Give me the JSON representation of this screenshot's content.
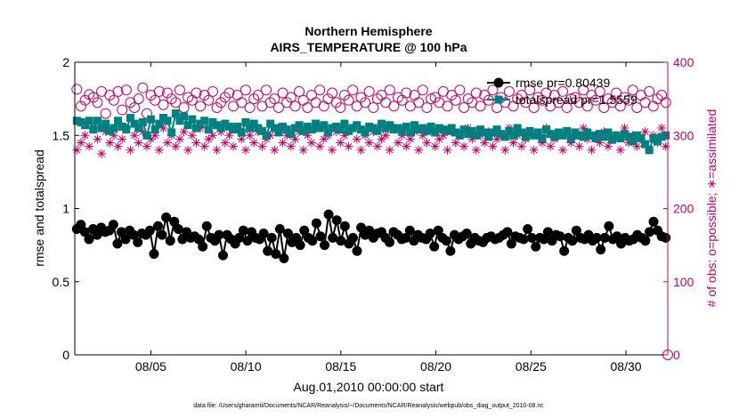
{
  "chart_data": {
    "type": "line",
    "title": "Northern Hemisphere",
    "subtitle": "AIRS_TEMPERATURE @ 100 hPa",
    "xlabel": "Aug.01,2010 00:00:00 start",
    "ylabel_left": "rmse and totalspread",
    "ylabel_right": "# of obs: o=possible; ∗=assimilated",
    "footnote": "data file: /Users/gharamti/Documents/NCAR/Reanalysis/~/Documents/NCAR/Reanalysis/webpub/obs_diag_output_2010-08.nc",
    "x_range_days": [
      1.0,
      32.2
    ],
    "x_ticks": [
      {
        "day": 5,
        "label": "08/05"
      },
      {
        "day": 10,
        "label": "08/10"
      },
      {
        "day": 15,
        "label": "08/15"
      },
      {
        "day": 20,
        "label": "08/20"
      },
      {
        "day": 25,
        "label": "08/25"
      },
      {
        "day": 30,
        "label": "08/30"
      }
    ],
    "ylim_left": [
      0,
      2
    ],
    "yticks_left": [
      "0",
      "0.5",
      "1",
      "1.5",
      "2"
    ],
    "ylim_right": [
      0,
      400
    ],
    "yticks_right": [
      "0",
      "100",
      "200",
      "300",
      "400"
    ],
    "colors": {
      "rmse": "#000000",
      "totalspread": "#008080",
      "obs": "#cc0066",
      "axis": "#000000"
    },
    "legend": {
      "position": "top-right",
      "entries": [
        "rmse pr=0.80439",
        "totalspread pr=1.5559"
      ]
    },
    "series": [
      {
        "name": "rmse pr=0.80439",
        "axis": "left",
        "marker": "filled-circle",
        "values": [
          0.86,
          0.89,
          0.84,
          0.79,
          0.86,
          0.82,
          0.87,
          0.84,
          0.85,
          0.89,
          0.76,
          0.84,
          0.79,
          0.85,
          0.82,
          0.77,
          0.83,
          0.82,
          0.85,
          0.69,
          0.88,
          0.82,
          0.94,
          0.78,
          0.91,
          0.86,
          0.79,
          0.84,
          0.8,
          0.81,
          0.79,
          0.74,
          0.88,
          0.8,
          0.78,
          0.82,
          0.68,
          0.82,
          0.79,
          0.76,
          0.8,
          0.85,
          0.78,
          0.84,
          0.8,
          0.79,
          0.83,
          0.71,
          0.8,
          0.69,
          0.86,
          0.66,
          0.83,
          0.77,
          0.8,
          0.75,
          0.85,
          0.8,
          0.78,
          0.9,
          0.81,
          0.75,
          0.96,
          0.8,
          0.92,
          0.78,
          0.88,
          0.76,
          0.8,
          0.71,
          0.87,
          0.82,
          0.85,
          0.8,
          0.83,
          0.84,
          0.8,
          0.77,
          0.84,
          0.82,
          0.79,
          0.8,
          0.85,
          0.78,
          0.82,
          0.8,
          0.79,
          0.83,
          0.74,
          0.85,
          0.8,
          0.78,
          0.71,
          0.82,
          0.79,
          0.81,
          0.83,
          0.76,
          0.8,
          0.78,
          0.77,
          0.8,
          0.81,
          0.79,
          0.8,
          0.82,
          0.84,
          0.76,
          0.81,
          0.8,
          0.79,
          0.86,
          0.8,
          0.74,
          0.8,
          0.79,
          0.84,
          0.78,
          0.82,
          0.81,
          0.71,
          0.8,
          0.78,
          0.85,
          0.8,
          0.79,
          0.82,
          0.78,
          0.8,
          0.72,
          0.8,
          0.88,
          0.79,
          0.81,
          0.76,
          0.8,
          0.78,
          0.79,
          0.82,
          0.8,
          0.78,
          0.84,
          0.91,
          0.85,
          0.81,
          0.8
        ],
        "stats": {
          "pr": 0.80439
        }
      },
      {
        "name": "totalspread pr=1.5559",
        "axis": "left",
        "marker": "filled-square",
        "values": [
          1.6,
          1.59,
          1.57,
          1.6,
          1.54,
          1.6,
          1.55,
          1.58,
          1.53,
          1.55,
          1.6,
          1.56,
          1.54,
          1.62,
          1.58,
          1.55,
          1.59,
          1.5,
          1.61,
          1.54,
          1.58,
          1.62,
          1.6,
          1.52,
          1.65,
          1.6,
          1.63,
          1.57,
          1.61,
          1.55,
          1.58,
          1.6,
          1.54,
          1.59,
          1.57,
          1.55,
          1.58,
          1.56,
          1.54,
          1.56,
          1.52,
          1.59,
          1.55,
          1.58,
          1.55,
          1.53,
          1.5,
          1.58,
          1.55,
          1.52,
          1.56,
          1.54,
          1.51,
          1.55,
          1.57,
          1.53,
          1.56,
          1.54,
          1.58,
          1.55,
          1.57,
          1.52,
          1.55,
          1.56,
          1.54,
          1.58,
          1.53,
          1.55,
          1.57,
          1.54,
          1.52,
          1.56,
          1.55,
          1.53,
          1.58,
          1.55,
          1.57,
          1.54,
          1.55,
          1.53,
          1.56,
          1.52,
          1.57,
          1.54,
          1.55,
          1.53,
          1.56,
          1.52,
          1.55,
          1.54,
          1.53,
          1.55,
          1.52,
          1.5,
          1.54,
          1.51,
          1.53,
          1.5,
          1.54,
          1.52,
          1.49,
          1.52,
          1.54,
          1.51,
          1.49,
          1.53,
          1.5,
          1.55,
          1.52,
          1.49,
          1.53,
          1.5,
          1.52,
          1.48,
          1.54,
          1.51,
          1.49,
          1.52,
          1.5,
          1.53,
          1.48,
          1.52,
          1.5,
          1.49,
          1.52,
          1.5,
          1.48,
          1.51,
          1.49,
          1.52,
          1.47,
          1.5,
          1.48,
          1.51,
          1.49,
          1.46,
          1.5,
          1.48,
          1.44,
          1.4,
          1.48,
          1.46,
          1.49,
          1.5
        ],
        "stats": {
          "pr": 1.5559
        }
      },
      {
        "name": "possible",
        "axis": "right",
        "marker": "open-circle",
        "values": [
          363,
          340,
          348,
          356,
          352,
          345,
          360,
          330,
          355,
          348,
          360,
          335,
          362,
          345,
          338,
          350,
          365,
          330,
          355,
          348,
          360,
          342,
          358,
          350,
          345,
          362,
          338,
          352,
          348,
          358,
          340,
          355,
          348,
          360,
          338,
          345,
          352,
          358,
          340,
          355,
          345,
          362,
          338,
          350,
          355,
          340,
          362,
          345,
          350,
          338,
          358,
          345,
          352,
          340,
          360,
          348,
          338,
          355,
          345,
          362,
          340,
          350,
          358,
          345,
          338,
          355,
          348,
          362,
          340,
          352,
          345,
          360,
          338,
          350,
          355,
          345,
          362,
          340,
          352,
          348,
          358,
          340,
          355,
          345,
          362,
          338,
          350,
          352,
          345,
          360,
          340,
          355,
          348,
          362,
          338,
          350,
          345,
          358,
          340,
          355,
          348,
          362,
          338,
          352,
          345,
          360,
          340,
          350,
          355,
          345,
          362,
          338,
          352,
          348,
          358,
          340,
          355,
          345,
          360,
          338,
          350,
          352,
          345,
          362,
          340,
          355,
          348,
          360,
          338,
          350,
          345,
          358,
          340,
          352,
          348,
          362,
          338,
          355,
          345,
          360,
          340,
          350,
          355,
          345
        ],
        "stats": {}
      },
      {
        "name": "assimilated",
        "axis": "right",
        "marker": "asterisk",
        "values": [
          280,
          290,
          300,
          285,
          310,
          295,
          275,
          305,
          290,
          300,
          285,
          295,
          310,
          280,
          300,
          290,
          305,
          285,
          295,
          300,
          280,
          310,
          290,
          300,
          285,
          295,
          305,
          280,
          300,
          290,
          310,
          285,
          295,
          300,
          280,
          305,
          290,
          300,
          285,
          310,
          295,
          280,
          300,
          290,
          305,
          285,
          295,
          300,
          280,
          310,
          290,
          300,
          285,
          295,
          305,
          280,
          300,
          290,
          310,
          285,
          295,
          300,
          280,
          305,
          290,
          300,
          285,
          310,
          295,
          280,
          300,
          290,
          305,
          285,
          295,
          300,
          280,
          310,
          290,
          300,
          285,
          295,
          305,
          280,
          300,
          290,
          310,
          285,
          295,
          300,
          280,
          305,
          290,
          300,
          285,
          310,
          295,
          280,
          300,
          290,
          305,
          285,
          295,
          300,
          280,
          310,
          290,
          300,
          285,
          295,
          305,
          280,
          300,
          290,
          310,
          285,
          295,
          300,
          280,
          305,
          290,
          300,
          285,
          310,
          295,
          280,
          300,
          290,
          305,
          285,
          295,
          300,
          280,
          310,
          290,
          300,
          285,
          295,
          305,
          280,
          300,
          290,
          310,
          285
        ],
        "stats": {}
      }
    ]
  }
}
